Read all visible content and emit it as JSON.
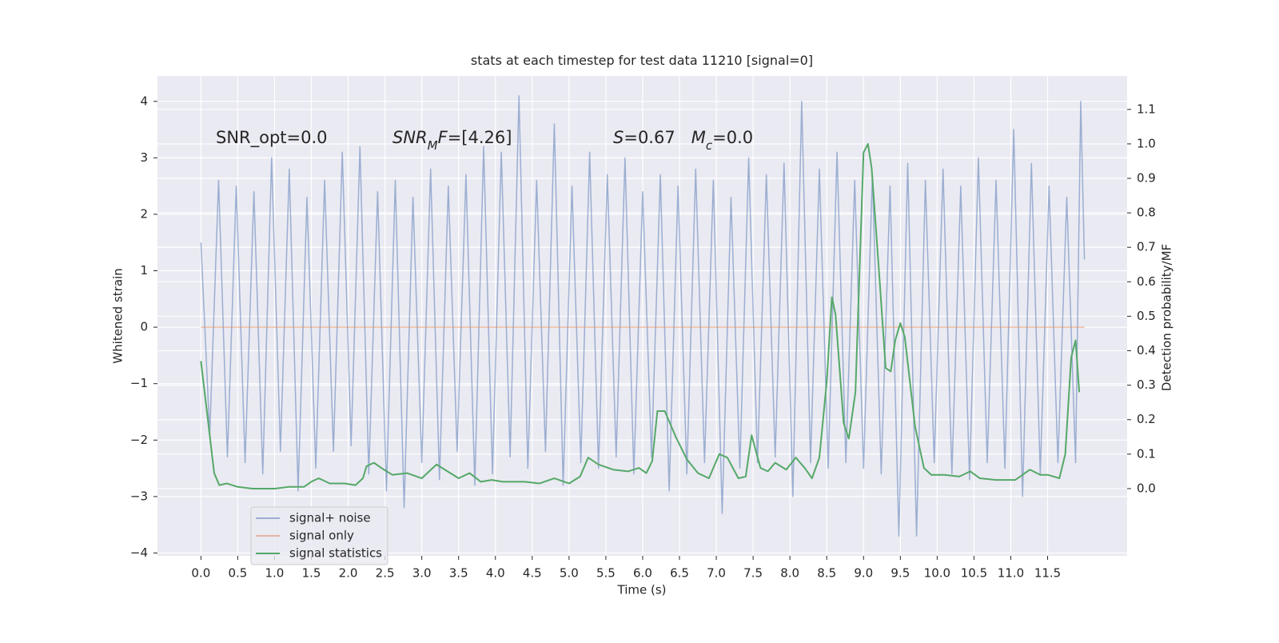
{
  "chart_data": {
    "type": "line",
    "title": "stats at each timestep for test data 11210 [signal=0]",
    "x_label": "Time (s)",
    "y_label": "Whitened strain",
    "y2_label": "Detection probability/MF",
    "grid": true,
    "legend": "lower left",
    "xlim": [
      -0.59,
      12.58
    ],
    "ylim": [
      -4.05,
      4.45
    ],
    "y2lim": [
      -0.195,
      1.197
    ],
    "xticks": [
      {
        "value": 0,
        "label": "0.0"
      },
      0.5,
      {
        "value": 1,
        "label": "1.0"
      },
      1.5,
      {
        "value": 2,
        "label": "2.0"
      },
      2.5,
      {
        "value": 3,
        "label": "3.0"
      },
      3.5,
      {
        "value": 4,
        "label": "4.0"
      },
      4.5,
      {
        "value": 5,
        "label": "5.0"
      },
      5.5,
      {
        "value": 6,
        "label": "6.0"
      },
      6.5,
      {
        "value": 7,
        "label": "7.0"
      },
      7.5,
      {
        "value": 8,
        "label": "8.0"
      },
      8.5,
      {
        "value": 9,
        "label": "9.0"
      },
      9.5,
      {
        "value": 10,
        "label": "10.0"
      },
      10.5,
      {
        "value": 11,
        "label": "11.0"
      },
      11.5
    ],
    "yticks": [
      {
        "value": -4,
        "label": "−4"
      },
      {
        "value": -3,
        "label": "−3"
      },
      {
        "value": -2,
        "label": "−2"
      },
      {
        "value": -1,
        "label": "−1"
      },
      0,
      1,
      2,
      3,
      4
    ],
    "y2ticks": [
      {
        "value": 0,
        "label": "0.0"
      },
      0.1,
      0.2,
      0.3,
      0.4,
      0.5,
      0.6,
      0.7,
      0.8,
      0.9,
      {
        "value": 1,
        "label": "1.0"
      },
      1.1
    ],
    "annotations": [
      [
        {
          "text": "SNR_opt=0.0"
        }
      ],
      [
        {
          "text": "SNR",
          "italic": true
        },
        {
          "text": "M",
          "italic": true,
          "sub": true
        },
        {
          "text": "F",
          "italic": true
        },
        {
          "text": "=[4.26]"
        }
      ],
      [
        {
          "text": "S",
          "italic": true
        },
        {
          "text": "=0.67   "
        },
        {
          "text": "M",
          "italic": true
        },
        {
          "text": "c",
          "italic": true,
          "sub": true
        },
        {
          "text": "=0.0"
        }
      ]
    ],
    "series": [
      {
        "name": "signal+ noise",
        "color": "#4c72b0",
        "opacity": 0.5,
        "x": [
          0,
          0.12,
          0.24,
          0.36,
          0.48,
          0.6,
          0.72,
          0.84,
          0.96,
          1.08,
          1.2,
          1.32,
          1.44,
          1.56,
          1.68,
          1.8,
          1.92,
          2.04,
          2.16,
          2.28,
          2.4,
          2.52,
          2.64,
          2.76,
          2.88,
          3.0,
          3.12,
          3.24,
          3.36,
          3.48,
          3.6,
          3.72,
          3.84,
          3.96,
          4.08,
          4.2,
          4.32,
          4.44,
          4.56,
          4.68,
          4.8,
          4.92,
          5.04,
          5.16,
          5.28,
          5.4,
          5.52,
          5.64,
          5.76,
          5.88,
          6.0,
          6.12,
          6.24,
          6.36,
          6.48,
          6.6,
          6.72,
          6.84,
          6.96,
          7.08,
          7.2,
          7.32,
          7.44,
          7.56,
          7.68,
          7.8,
          7.92,
          8.04,
          8.16,
          8.28,
          8.4,
          8.52,
          8.64,
          8.76,
          8.88,
          9.0,
          9.12,
          9.24,
          9.36,
          9.48,
          9.6,
          9.72,
          9.84,
          9.96,
          10.08,
          10.2,
          10.32,
          10.44,
          10.56,
          10.68,
          10.8,
          10.92,
          11.04,
          11.16,
          11.28,
          11.4,
          11.52,
          11.64,
          11.76,
          11.88,
          11.95,
          12.0
        ],
        "values": [
          1.5,
          -1.9,
          2.6,
          -2.3,
          2.5,
          -2.4,
          2.4,
          -2.6,
          3.0,
          -2.2,
          2.8,
          -2.9,
          2.3,
          -2.5,
          2.6,
          -2.2,
          3.1,
          -2.1,
          3.2,
          -2.6,
          2.4,
          -2.9,
          2.6,
          -3.2,
          2.3,
          -2.4,
          2.8,
          -2.7,
          2.5,
          -2.2,
          2.7,
          -2.8,
          3.2,
          -2.6,
          3.1,
          -2.3,
          4.1,
          -2.5,
          2.6,
          -2.2,
          3.6,
          -2.8,
          2.5,
          -2.4,
          3.1,
          -2.5,
          2.7,
          -2.3,
          3.0,
          -2.6,
          2.4,
          -2.3,
          2.7,
          -2.9,
          2.5,
          -2.6,
          2.8,
          -2.4,
          2.6,
          -3.3,
          2.3,
          -2.5,
          3.0,
          -2.4,
          2.7,
          -2.3,
          2.9,
          -3.0,
          4.0,
          -2.4,
          2.8,
          -2.5,
          3.1,
          -2.4,
          2.6,
          -2.5,
          2.7,
          -2.6,
          2.5,
          -3.7,
          2.9,
          -3.7,
          2.6,
          -2.4,
          2.8,
          -2.6,
          2.5,
          -2.7,
          3.0,
          -2.4,
          2.6,
          -2.5,
          3.5,
          -3.0,
          2.9,
          -2.6,
          2.5,
          -2.4,
          2.3,
          -2.4,
          4.0,
          1.2
        ]
      },
      {
        "name": "signal only",
        "color": "#dd8452",
        "opacity": 0.5,
        "x": [
          0,
          12.0
        ],
        "values": [
          0,
          0
        ]
      },
      {
        "name": "signal statistics",
        "color": "#55a868",
        "opacity": 1,
        "axis": "y2",
        "x": [
          0,
          0.1,
          0.18,
          0.25,
          0.35,
          0.5,
          0.7,
          1.0,
          1.2,
          1.4,
          1.5,
          1.6,
          1.75,
          1.95,
          2.1,
          2.2,
          2.25,
          2.35,
          2.45,
          2.6,
          2.8,
          3.0,
          3.1,
          3.2,
          3.35,
          3.5,
          3.65,
          3.8,
          3.95,
          4.1,
          4.4,
          4.6,
          4.8,
          5.0,
          5.15,
          5.26,
          5.4,
          5.6,
          5.8,
          5.95,
          6.05,
          6.13,
          6.2,
          6.3,
          6.45,
          6.6,
          6.75,
          6.9,
          7.04,
          7.15,
          7.3,
          7.4,
          7.48,
          7.6,
          7.7,
          7.8,
          7.95,
          8.08,
          8.2,
          8.3,
          8.4,
          8.5,
          8.57,
          8.62,
          8.73,
          8.8,
          8.89,
          9.0,
          9.06,
          9.11,
          9.22,
          9.3,
          9.37,
          9.43,
          9.5,
          9.56,
          9.7,
          9.82,
          9.92,
          10.1,
          10.3,
          10.45,
          10.58,
          10.8,
          11.06,
          11.26,
          11.4,
          11.5,
          11.66,
          11.74,
          11.82,
          11.88,
          11.93
        ],
        "values": [
          0.37,
          0.19,
          0.045,
          0.01,
          0.015,
          0.005,
          0.0,
          0.0,
          0.005,
          0.005,
          0.02,
          0.03,
          0.015,
          0.015,
          0.01,
          0.03,
          0.065,
          0.075,
          0.06,
          0.04,
          0.045,
          0.03,
          0.05,
          0.07,
          0.05,
          0.03,
          0.045,
          0.02,
          0.025,
          0.02,
          0.02,
          0.015,
          0.03,
          0.015,
          0.035,
          0.09,
          0.07,
          0.055,
          0.05,
          0.06,
          0.045,
          0.08,
          0.225,
          0.225,
          0.15,
          0.085,
          0.045,
          0.03,
          0.1,
          0.09,
          0.03,
          0.035,
          0.155,
          0.06,
          0.05,
          0.075,
          0.055,
          0.09,
          0.06,
          0.03,
          0.09,
          0.31,
          0.555,
          0.505,
          0.19,
          0.145,
          0.28,
          0.975,
          1.0,
          0.93,
          0.6,
          0.35,
          0.34,
          0.43,
          0.48,
          0.44,
          0.18,
          0.06,
          0.04,
          0.04,
          0.035,
          0.05,
          0.03,
          0.025,
          0.025,
          0.055,
          0.04,
          0.04,
          0.03,
          0.1,
          0.38,
          0.43,
          0.28
        ]
      }
    ]
  }
}
